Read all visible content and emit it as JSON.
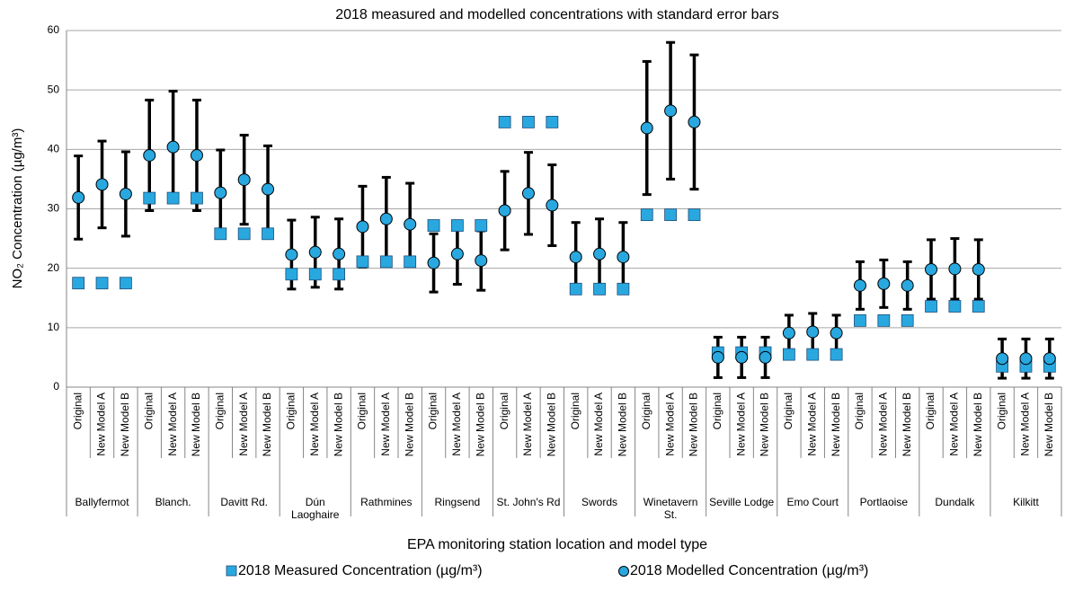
{
  "chart_data": {
    "type": "errorbar",
    "title": "2018 measured and modelled concentrations with standard error bars",
    "x_label": "EPA monitoring station location and model type",
    "y_label": "NO₂ Concentration (µg/m³)",
    "groups": [
      {
        "name": "Ballyfermot",
        "categories": [
          "Original",
          "New Model A",
          "New Model B"
        ]
      },
      {
        "name": "Blanch.",
        "categories": [
          "Original",
          "New Model A",
          "New Model B"
        ]
      },
      {
        "name": "Davitt Rd.",
        "categories": [
          "Original",
          "New Model A",
          "New Model B"
        ]
      },
      {
        "name": "Dún Laoghaire",
        "categories": [
          "Original",
          "New Model A",
          "New Model B"
        ]
      },
      {
        "name": "Rathmines",
        "categories": [
          "Original",
          "New Model A",
          "New Model B"
        ]
      },
      {
        "name": "Ringsend",
        "categories": [
          "Original",
          "New Model A",
          "New Model B"
        ]
      },
      {
        "name": "St. John's Rd",
        "categories": [
          "Original",
          "New Model A",
          "New Model B"
        ]
      },
      {
        "name": "Swords",
        "categories": [
          "Original",
          "New Model A",
          "New Model B"
        ]
      },
      {
        "name": "Winetavern St.",
        "categories": [
          "Original",
          "New Model A",
          "New Model B"
        ]
      },
      {
        "name": "Seville Lodge",
        "categories": [
          "Original",
          "New Model A",
          "New Model B"
        ]
      },
      {
        "name": "Emo Court",
        "categories": [
          "Original",
          "New Model A",
          "New Model B"
        ]
      },
      {
        "name": "Portlaoise",
        "categories": [
          "Original",
          "New Model A",
          "New Model B"
        ]
      },
      {
        "name": "Dundalk",
        "categories": [
          "Original",
          "New Model A",
          "New Model B"
        ]
      },
      {
        "name": "Kilkitt",
        "categories": [
          "Original",
          "New Model A",
          "New Model B"
        ]
      }
    ],
    "series": [
      {
        "name": "2018 Measured Concentration (µg/m³)",
        "marker": "square",
        "color": "#29a8e0",
        "values": [
          17.5,
          17.5,
          17.5,
          31.8,
          31.8,
          31.8,
          25.8,
          25.8,
          25.8,
          19,
          19,
          19,
          21.1,
          21.1,
          21.1,
          27.2,
          27.2,
          27.2,
          44.6,
          44.6,
          44.6,
          16.5,
          16.5,
          16.5,
          29,
          29,
          29,
          5.8,
          5.8,
          5.8,
          5.5,
          5.5,
          5.5,
          11.2,
          11.2,
          11.2,
          13.6,
          13.6,
          13.6,
          3.5,
          3.5,
          3.5
        ]
      },
      {
        "name": "2018 Modelled Concentration (µg/m³)",
        "marker": "circle",
        "color": "#29a8e0",
        "values": [
          31.9,
          34.1,
          32.5,
          39,
          40.4,
          39,
          32.7,
          34.9,
          33.3,
          22.3,
          22.7,
          22.4,
          27,
          28.3,
          27.4,
          20.9,
          22.4,
          21.3,
          29.7,
          32.6,
          30.6,
          21.9,
          22.4,
          21.9,
          43.6,
          46.5,
          44.6,
          5,
          5,
          5,
          9.1,
          9.3,
          9.1,
          17.1,
          17.4,
          17.1,
          19.8,
          19.9,
          19.8,
          4.8,
          4.8,
          4.8
        ],
        "errors": [
          7,
          7.3,
          7.1,
          9.3,
          9.4,
          9.3,
          7.2,
          7.5,
          7.3,
          5.8,
          5.9,
          5.9,
          6.8,
          7,
          6.9,
          4.9,
          5.1,
          5,
          6.6,
          6.9,
          6.8,
          5.8,
          5.9,
          5.8,
          11.2,
          11.5,
          11.3,
          3.4,
          3.4,
          3.4,
          3,
          3.1,
          3,
          4,
          4,
          4,
          5,
          5.1,
          5,
          3.3,
          3.3,
          3.3
        ]
      }
    ],
    "ylim": [
      0,
      60
    ],
    "yticks": [
      0,
      10,
      20,
      30,
      40,
      50,
      60
    ],
    "grid": true
  }
}
